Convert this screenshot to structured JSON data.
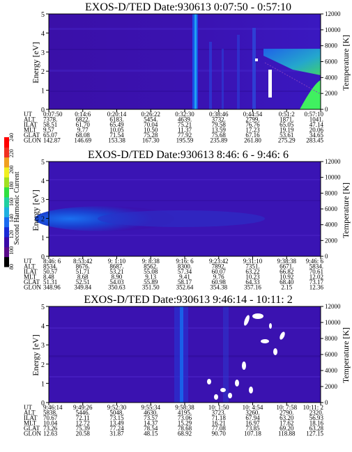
{
  "chart_data": [
    {
      "type": "heatmap",
      "title": "EXOS-D/TED   Date:930613  0:07:50 - 0:57:10",
      "ylabel": "Energy [eV]",
      "y2label": "Temperature [K]",
      "ylim": [
        0,
        5
      ],
      "y2lim": [
        0,
        12000
      ],
      "yticks": [
        "0",
        "1",
        "2",
        "3",
        "4",
        "5"
      ],
      "y2ticks": [
        "0",
        "2000",
        "4000",
        "6000",
        "8000",
        "10000",
        "12000"
      ],
      "row_labels": [
        "UT",
        "ALT",
        "ILAT",
        "MLT",
        "GLAT",
        "GLON"
      ],
      "columns": [
        [
          "0:07:50",
          "7378.",
          "58.51",
          "9.57",
          "65.07",
          "142.87"
        ],
        [
          "0:14:6",
          "6822.",
          "61.70",
          "9.77",
          "68.08",
          "146.69"
        ],
        [
          "0:20:14",
          "6183.",
          "65.49",
          "10.05",
          "71.54",
          "153.38"
        ],
        [
          "0:26:22",
          "5454.",
          "70.04",
          "10.50",
          "75.28",
          "167.30"
        ],
        [
          "0:32:30",
          "4639.",
          "75.21",
          "11.37",
          "77.92",
          "195.59"
        ],
        [
          "0:38:46",
          "3732.",
          "79.58",
          "13.59",
          "75.68",
          "235.89"
        ],
        [
          "0:44:54",
          "2799.",
          "76.76",
          "17.23",
          "67.16",
          "261.80"
        ],
        [
          "0:51:2",
          "1871.",
          "65.05",
          "19.19",
          "53.61",
          "275.29"
        ],
        [
          "0:57:10",
          "1041.",
          "47.14",
          "20.06",
          "34.65",
          "283.45"
        ]
      ]
    },
    {
      "type": "heatmap",
      "title": "EXOS-D/TED   Date:930613  8:46: 6 - 9:46: 6",
      "ylabel": "Energy [eV]",
      "y2label": "Temperature [K]",
      "ylim": [
        0,
        5
      ],
      "y2lim": [
        0,
        12000
      ],
      "yticks": [
        "0",
        "1",
        "2",
        "3",
        "4",
        "5"
      ],
      "y2ticks": [
        "0",
        "2000",
        "4000",
        "6000",
        "8000",
        "10000",
        "12000"
      ],
      "row_labels": [
        "UT",
        "ALT",
        "ILAT",
        "MLT",
        "GLAT",
        "GLON"
      ],
      "columns": [
        [
          "8:46: 6",
          "8534.",
          "50.57",
          "8.48",
          "51.31",
          "348.96"
        ],
        [
          "8:53:42",
          "8676.",
          "51.71",
          "8.68",
          "52.51",
          "349.84"
        ],
        [
          "9: 1:10",
          "8687.",
          "53.21",
          "8.90",
          "54.03",
          "350.63"
        ],
        [
          "9: 8:38",
          "8562.",
          "55.08",
          "9.13",
          "55.89",
          "351.50"
        ],
        [
          "9:16: 6",
          "8300.",
          "57.34",
          "9.41",
          "58.17",
          "352.64"
        ],
        [
          "9:23:42",
          "7892.",
          "60.07",
          "9.76",
          "60.98",
          "354.38"
        ],
        [
          "9:31:10",
          "7351.",
          "63.22",
          "10.23",
          "64.33",
          "357.16"
        ],
        [
          "9:38:38",
          "6671.",
          "66.82",
          "10.92",
          "68.40",
          "2.15"
        ],
        [
          "9:46: 6",
          "5834.",
          "70.61",
          "12.02",
          "73.17",
          "12.36"
        ]
      ]
    },
    {
      "type": "heatmap",
      "title": "EXOS-D/TED   Date:930613  9:46:14 - 10:11: 2",
      "ylabel": "Energy [eV]",
      "y2label": "Temperature [K]",
      "ylim": [
        0,
        5
      ],
      "y2lim": [
        0,
        12000
      ],
      "yticks": [
        "0",
        "1",
        "2",
        "3",
        "4",
        "5"
      ],
      "y2ticks": [
        "0",
        "2000",
        "4000",
        "6000",
        "8000",
        "10000",
        "12000"
      ],
      "row_labels": [
        "UT",
        "ALT",
        "ILAT",
        "MLT",
        "GLAT",
        "GLON"
      ],
      "columns": [
        [
          "9:46:14",
          "5838.",
          "70.67",
          "10.04",
          "73.26",
          "12.63"
        ],
        [
          "9:49:26",
          "5446.",
          "72.11",
          "12.72",
          "75.39",
          "20.58"
        ],
        [
          "9:52:30",
          "5048.",
          "73.15",
          "13.49",
          "77.24",
          "31.87"
        ],
        [
          "9:55:34",
          "4630.",
          "73.57",
          "14.37",
          "78.54",
          "48.15"
        ],
        [
          "9:58:38",
          "4195.",
          "73.06",
          "15.29",
          "78.68",
          "68.92"
        ],
        [
          "10: 1:50",
          "3723.",
          "71.18",
          "16.21",
          "77.08",
          "90.70"
        ],
        [
          "10: 4:54",
          "3260.",
          "67.94",
          "16.97",
          "73.85",
          "107.18"
        ],
        [
          "10: 7:58",
          "2790.",
          "63.20",
          "17.62",
          "69.20",
          "118.88"
        ],
        [
          "10:11: 2",
          "2320.",
          "56.93",
          "18.16",
          "63.28",
          "127.15"
        ]
      ]
    }
  ],
  "colorbar": {
    "label": "Second Harmonic Current",
    "ticks": [
      "80",
      "100",
      "120",
      "140",
      "160",
      "180",
      "200",
      "220",
      "240"
    ],
    "colors": [
      "#000000",
      "#5a0a8a",
      "#3a0aa8",
      "#1a2ad6",
      "#1a6af0",
      "#20b0e0",
      "#20d0a0",
      "#30e040",
      "#a0e020",
      "#f0f020",
      "#f0a020",
      "#f03020",
      "#ff0000"
    ]
  }
}
